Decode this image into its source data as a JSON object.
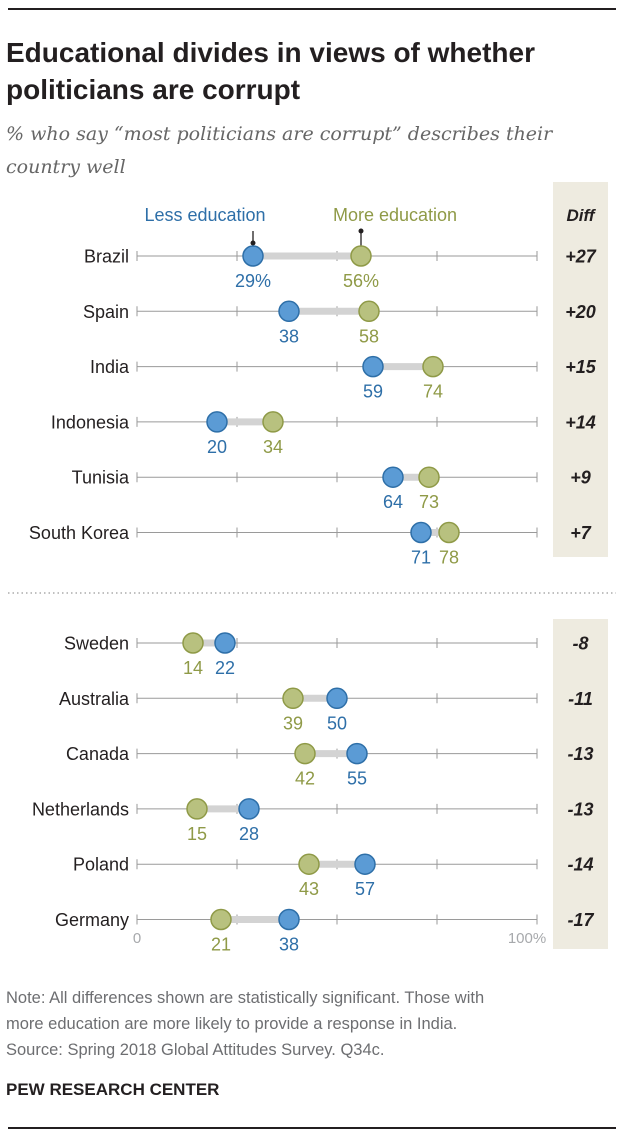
{
  "title": "Educational divides in views of whether politicians are corrupt",
  "subtitle": "% who say “most politicians are corrupt” describes their country well",
  "note_lines": [
    "Note: All differences shown are statistically significant. Those with",
    "more education are more likely to provide a response in India.",
    "Source: Spring 2018 Global Attitudes Survey. Q34c."
  ],
  "brand": "PEW RESEARCH CENTER",
  "colors": {
    "less_education": "#5b9bd5",
    "less_education_text": "#2e6fa8",
    "more_education": "#b8c17f",
    "more_education_text": "#8f9a47",
    "connector": "#d3d3d3",
    "axis": "#9a9a9a",
    "diff_panel": "#eeebe0"
  },
  "chart_data": {
    "type": "dumbbell",
    "legend": {
      "less_label": "Less education",
      "more_label": "More education",
      "position": "top"
    },
    "diff_header": "Diff",
    "x_range": [
      0,
      100
    ],
    "axis_min_label": "0",
    "axis_max_label": "100%",
    "groups": [
      {
        "rows": [
          {
            "country": "Brazil",
            "less": 29,
            "more": 56,
            "less_label": "29%",
            "more_label": "56%",
            "diff": "+27"
          },
          {
            "country": "Spain",
            "less": 38,
            "more": 58,
            "less_label": "38",
            "more_label": "58",
            "diff": "+20"
          },
          {
            "country": "India",
            "less": 59,
            "more": 74,
            "less_label": "59",
            "more_label": "74",
            "diff": "+15"
          },
          {
            "country": "Indonesia",
            "less": 20,
            "more": 34,
            "less_label": "20",
            "more_label": "34",
            "diff": "+14"
          },
          {
            "country": "Tunisia",
            "less": 64,
            "more": 73,
            "less_label": "64",
            "more_label": "73",
            "diff": "+9"
          },
          {
            "country": "South Korea",
            "less": 71,
            "more": 78,
            "less_label": "71",
            "more_label": "78",
            "diff": "+7"
          }
        ]
      },
      {
        "rows": [
          {
            "country": "Sweden",
            "less": 22,
            "more": 14,
            "less_label": "22",
            "more_label": "14",
            "diff": "-8"
          },
          {
            "country": "Australia",
            "less": 50,
            "more": 39,
            "less_label": "50",
            "more_label": "39",
            "diff": "-11"
          },
          {
            "country": "Canada",
            "less": 55,
            "more": 42,
            "less_label": "55",
            "more_label": "42",
            "diff": "-13"
          },
          {
            "country": "Netherlands",
            "less": 28,
            "more": 15,
            "less_label": "28",
            "more_label": "15",
            "diff": "-13"
          },
          {
            "country": "Poland",
            "less": 57,
            "more": 43,
            "less_label": "57",
            "more_label": "43",
            "diff": "-14"
          },
          {
            "country": "Germany",
            "less": 38,
            "more": 21,
            "less_label": "38",
            "more_label": "21",
            "diff": "-17"
          }
        ]
      }
    ]
  }
}
